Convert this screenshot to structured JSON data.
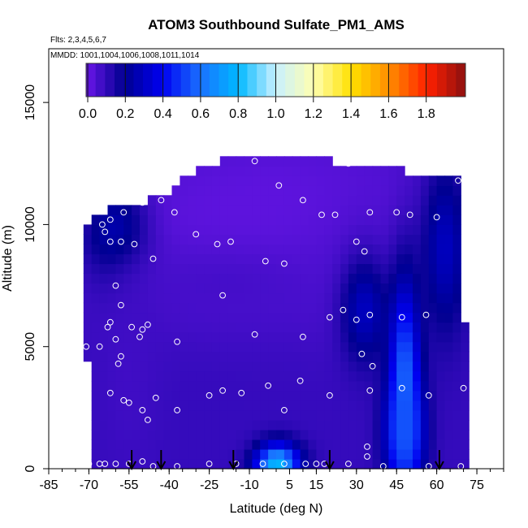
{
  "chart_data": {
    "type": "heatmap",
    "title": "ATOM3 Southbound Sulfate_PM1_AMS",
    "flights_label": "Flts: 2,3,4,5,6,7",
    "dates_label": "MMDD: 1001,1004,1006,1008,1011,1014",
    "xlabel": "Latitude (deg N)",
    "ylabel": "Altitude (m)",
    "xlim": [
      -85,
      85
    ],
    "ylim": [
      0,
      17200
    ],
    "x_tick_labels": [
      "-85",
      "-70",
      "-55",
      "-40",
      "-25",
      "-10",
      "5",
      "15",
      "30",
      "45",
      "60",
      "75"
    ],
    "x_tick_values": [
      -85,
      -70,
      -55,
      -40,
      -25,
      -10,
      5,
      15,
      30,
      45,
      60,
      75
    ],
    "y_ticks": [
      {
        "value": 0,
        "label": "0"
      },
      {
        "value": 5000,
        "label": "5000"
      },
      {
        "value": 10000,
        "label": "10000"
      },
      {
        "value": 15000,
        "label": "15000"
      }
    ],
    "colorbar": {
      "min": 0.0,
      "max": 2.0,
      "tick_values": [
        0.0,
        0.2,
        0.4,
        0.6,
        0.8,
        1.0,
        1.2,
        1.4,
        1.6,
        1.8
      ],
      "tick_labels": [
        "0.0",
        "0.2",
        "0.4",
        "0.6",
        "0.8",
        "1.0",
        "1.2",
        "1.4",
        "1.6",
        "1.8"
      ],
      "colors": [
        "#6a16e8",
        "#000090",
        "#0000f0",
        "#1a70ff",
        "#00b8ff",
        "#c8f0ff",
        "#ffffb0",
        "#ffe000",
        "#ff8c00",
        "#ff2000",
        "#8b1010"
      ]
    },
    "outline_top_altitude": [
      {
        "x": -73,
        "y": 9600
      },
      {
        "x": -70,
        "y": 10200
      },
      {
        "x": -64,
        "y": 10600
      },
      {
        "x": -53,
        "y": 10800
      },
      {
        "x": -47,
        "y": 11100
      },
      {
        "x": -40,
        "y": 11400
      },
      {
        "x": -33,
        "y": 12000
      },
      {
        "x": -20,
        "y": 12600
      },
      {
        "x": -10,
        "y": 12700
      },
      {
        "x": 0,
        "y": 12700
      },
      {
        "x": 12,
        "y": 12800
      },
      {
        "x": 22,
        "y": 12600
      },
      {
        "x": 32,
        "y": 12500
      },
      {
        "x": 47,
        "y": 12200
      },
      {
        "x": 60,
        "y": 12000
      },
      {
        "x": 69,
        "y": 11800
      }
    ],
    "outline_left_edge": [
      {
        "x": -73,
        "y": 9600
      },
      {
        "x": -71,
        "y": 5000
      },
      {
        "x": -69,
        "y": 2500
      },
      {
        "x": -68,
        "y": 0
      }
    ],
    "outline_right_edge": [
      {
        "x": 69,
        "y": 11800
      },
      {
        "x": 70,
        "y": 8000
      },
      {
        "x": 71,
        "y": 4000
      },
      {
        "x": 71,
        "y": 0
      }
    ],
    "field_features": [
      {
        "x": -20,
        "y": 10000,
        "value": 0.03,
        "sx": 45,
        "sy": 2600
      },
      {
        "x": 10,
        "y": 10500,
        "value": 0.02,
        "sx": 35,
        "sy": 2200
      },
      {
        "x": 40,
        "y": 9000,
        "value": 0.05,
        "sx": 20,
        "sy": 2500
      },
      {
        "x": -60,
        "y": 9500,
        "value": 0.3,
        "sx": 8,
        "sy": 1500
      },
      {
        "x": 63,
        "y": 9000,
        "value": 0.3,
        "sx": 6,
        "sy": 2500
      },
      {
        "x": -20,
        "y": 7500,
        "value": 0.07,
        "sx": 30,
        "sy": 1200
      },
      {
        "x": 33,
        "y": 6500,
        "value": 0.3,
        "sx": 6,
        "sy": 1500
      },
      {
        "x": 48,
        "y": 3500,
        "value": 0.6,
        "sx": 4,
        "sy": 3000
      },
      {
        "x": 48,
        "y": 1500,
        "value": 0.55,
        "sx": 5,
        "sy": 1500
      },
      {
        "x": 0,
        "y": 200,
        "value": 0.85,
        "sx": 6,
        "sy": 600
      },
      {
        "x": -30,
        "y": 1500,
        "value": 0.1,
        "sx": 15,
        "sy": 1200
      },
      {
        "x": -55,
        "y": 4000,
        "value": 0.08,
        "sx": 8,
        "sy": 3000
      }
    ],
    "observations": [
      {
        "x": -82,
        "y": 9900
      },
      {
        "x": -74,
        "y": 9900
      },
      {
        "x": -65,
        "y": 10000
      },
      {
        "x": -62,
        "y": 10200
      },
      {
        "x": -57,
        "y": 10500
      },
      {
        "x": -50,
        "y": 10900
      },
      {
        "x": -43,
        "y": 11000
      },
      {
        "x": -38,
        "y": 10500
      },
      {
        "x": -62,
        "y": 9300
      },
      {
        "x": -58,
        "y": 9300
      },
      {
        "x": -53,
        "y": 9200
      },
      {
        "x": -46,
        "y": 8600
      },
      {
        "x": -30,
        "y": 9600
      },
      {
        "x": -22,
        "y": 9200
      },
      {
        "x": -17,
        "y": 9300
      },
      {
        "x": -8,
        "y": 12600
      },
      {
        "x": 1,
        "y": 11600
      },
      {
        "x": 10,
        "y": 11000
      },
      {
        "x": 17,
        "y": 10400
      },
      {
        "x": 22,
        "y": 10400
      },
      {
        "x": 27,
        "y": 12500
      },
      {
        "x": 35,
        "y": 10500
      },
      {
        "x": 45,
        "y": 10500
      },
      {
        "x": 50,
        "y": 10400
      },
      {
        "x": 60,
        "y": 10300
      },
      {
        "x": 68,
        "y": 11800
      },
      {
        "x": -4,
        "y": 8500
      },
      {
        "x": 3,
        "y": 8400
      },
      {
        "x": 30,
        "y": 9300
      },
      {
        "x": 33,
        "y": 8900
      },
      {
        "x": -64,
        "y": 9700
      },
      {
        "x": -60,
        "y": 7500
      },
      {
        "x": -58,
        "y": 6700
      },
      {
        "x": -54,
        "y": 5800
      },
      {
        "x": -50,
        "y": 5700
      },
      {
        "x": -48,
        "y": 5900
      },
      {
        "x": -37,
        "y": 5200
      },
      {
        "x": -20,
        "y": 7100
      },
      {
        "x": -8,
        "y": 5500
      },
      {
        "x": 10,
        "y": 5400
      },
      {
        "x": 20,
        "y": 6200
      },
      {
        "x": 25,
        "y": 6500
      },
      {
        "x": 30,
        "y": 6100
      },
      {
        "x": 35,
        "y": 6300
      },
      {
        "x": 47,
        "y": 6200
      },
      {
        "x": 56,
        "y": 6300
      },
      {
        "x": -63,
        "y": 5800
      },
      {
        "x": -62,
        "y": 6000
      },
      {
        "x": -66,
        "y": 5000
      },
      {
        "x": -60,
        "y": 5300
      },
      {
        "x": -58,
        "y": 4600
      },
      {
        "x": -59,
        "y": 4300
      },
      {
        "x": -51,
        "y": 5400
      },
      {
        "x": -71,
        "y": 5000
      },
      {
        "x": 32,
        "y": 4700
      },
      {
        "x": 36,
        "y": 4200
      },
      {
        "x": -62,
        "y": 3100
      },
      {
        "x": -57,
        "y": 2800
      },
      {
        "x": -55,
        "y": 2700
      },
      {
        "x": -50,
        "y": 2400
      },
      {
        "x": -48,
        "y": 2000
      },
      {
        "x": -45,
        "y": 2900
      },
      {
        "x": -37,
        "y": 2400
      },
      {
        "x": -25,
        "y": 3000
      },
      {
        "x": -20,
        "y": 3200
      },
      {
        "x": -13,
        "y": 3100
      },
      {
        "x": -3,
        "y": 3400
      },
      {
        "x": 3,
        "y": 2400
      },
      {
        "x": 9,
        "y": 3600
      },
      {
        "x": 20,
        "y": 3000
      },
      {
        "x": 35,
        "y": 3200
      },
      {
        "x": 47,
        "y": 3300
      },
      {
        "x": 57,
        "y": 3000
      },
      {
        "x": 70,
        "y": 3300
      },
      {
        "x": -70,
        "y": 200
      },
      {
        "x": -66,
        "y": 200
      },
      {
        "x": -64,
        "y": 200
      },
      {
        "x": -60,
        "y": 200
      },
      {
        "x": -55,
        "y": 200
      },
      {
        "x": -50,
        "y": 300
      },
      {
        "x": -46,
        "y": 100
      },
      {
        "x": -37,
        "y": 100
      },
      {
        "x": -25,
        "y": 200
      },
      {
        "x": -15,
        "y": 200
      },
      {
        "x": -5,
        "y": 200
      },
      {
        "x": 3,
        "y": 200
      },
      {
        "x": 11,
        "y": 200
      },
      {
        "x": 15,
        "y": 200
      },
      {
        "x": 18,
        "y": 200
      },
      {
        "x": 27,
        "y": 200
      },
      {
        "x": 34,
        "y": 500
      },
      {
        "x": 34,
        "y": 900
      },
      {
        "x": 40,
        "y": 100
      },
      {
        "x": 57,
        "y": 100
      },
      {
        "x": 69,
        "y": 100
      }
    ],
    "flight_markers_latitude": [
      -54,
      -43,
      -16,
      20,
      61
    ]
  }
}
